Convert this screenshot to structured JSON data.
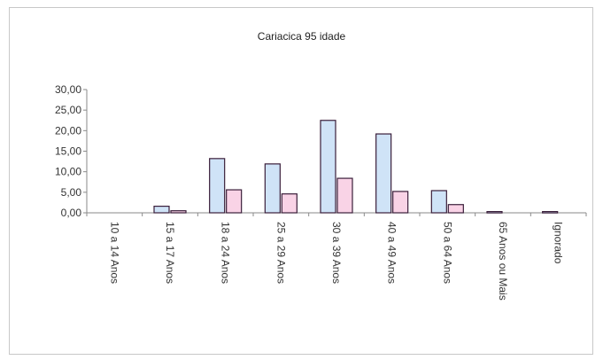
{
  "chart_data": {
    "type": "bar",
    "title": "Cariacica 95 idade",
    "xlabel": "",
    "ylabel": "",
    "ylim": [
      0,
      30
    ],
    "yticks": [
      "0,00",
      "5,00",
      "10,00",
      "15,00",
      "20,00",
      "25,00",
      "30,00"
    ],
    "ytick_values": [
      0,
      5,
      10,
      15,
      20,
      25,
      30
    ],
    "categories": [
      "10 a 14 Anos",
      "15 a 17 Anos",
      "18 a 24 Anos",
      "25 a 29 Anos",
      "30 a 39 Anos",
      "40 a 49 Anos",
      "50 a 64 Anos",
      "65 Anos ou Mais",
      "Ignorado"
    ],
    "series": [
      {
        "values": [
          0,
          1.6,
          13.2,
          11.9,
          22.5,
          19.2,
          5.4,
          0.3,
          0.3
        ],
        "color": "#cfe3f7"
      },
      {
        "values": [
          0,
          0.5,
          5.6,
          4.6,
          8.4,
          5.2,
          2.0,
          0,
          0
        ],
        "color": "#f9d3e6"
      }
    ],
    "grid": false,
    "legend": "none"
  }
}
